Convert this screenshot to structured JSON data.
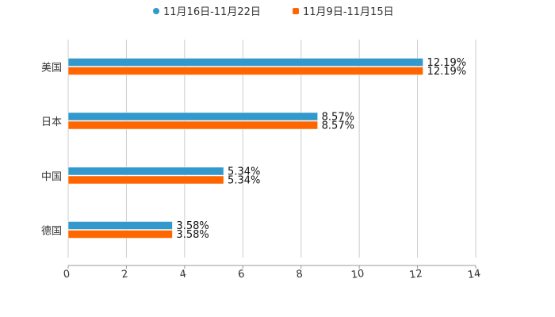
{
  "chart_data": {
    "type": "bar",
    "orientation": "horizontal",
    "categories": [
      "美国",
      "日本",
      "中国",
      "德国"
    ],
    "series": [
      {
        "name": "11月16日-11月22日",
        "color": "#3399cc",
        "values": [
          12.19,
          8.57,
          5.34,
          3.58
        ],
        "labels": [
          "12.19%",
          "8.57%",
          "5.34%",
          "3.58%"
        ]
      },
      {
        "name": "11月9日-11月15日",
        "color": "#ff6600",
        "values": [
          12.19,
          8.57,
          5.34,
          3.58
        ],
        "labels": [
          "12.19%",
          "8.57%",
          "5.34%",
          "3.58%"
        ]
      }
    ],
    "xlim": [
      0,
      14
    ],
    "xticks": [
      "0",
      "2",
      "4",
      "6",
      "8",
      "10",
      "12",
      "14"
    ],
    "grid": true,
    "legend": "top-center",
    "title": "",
    "xlabel": "",
    "ylabel": ""
  }
}
